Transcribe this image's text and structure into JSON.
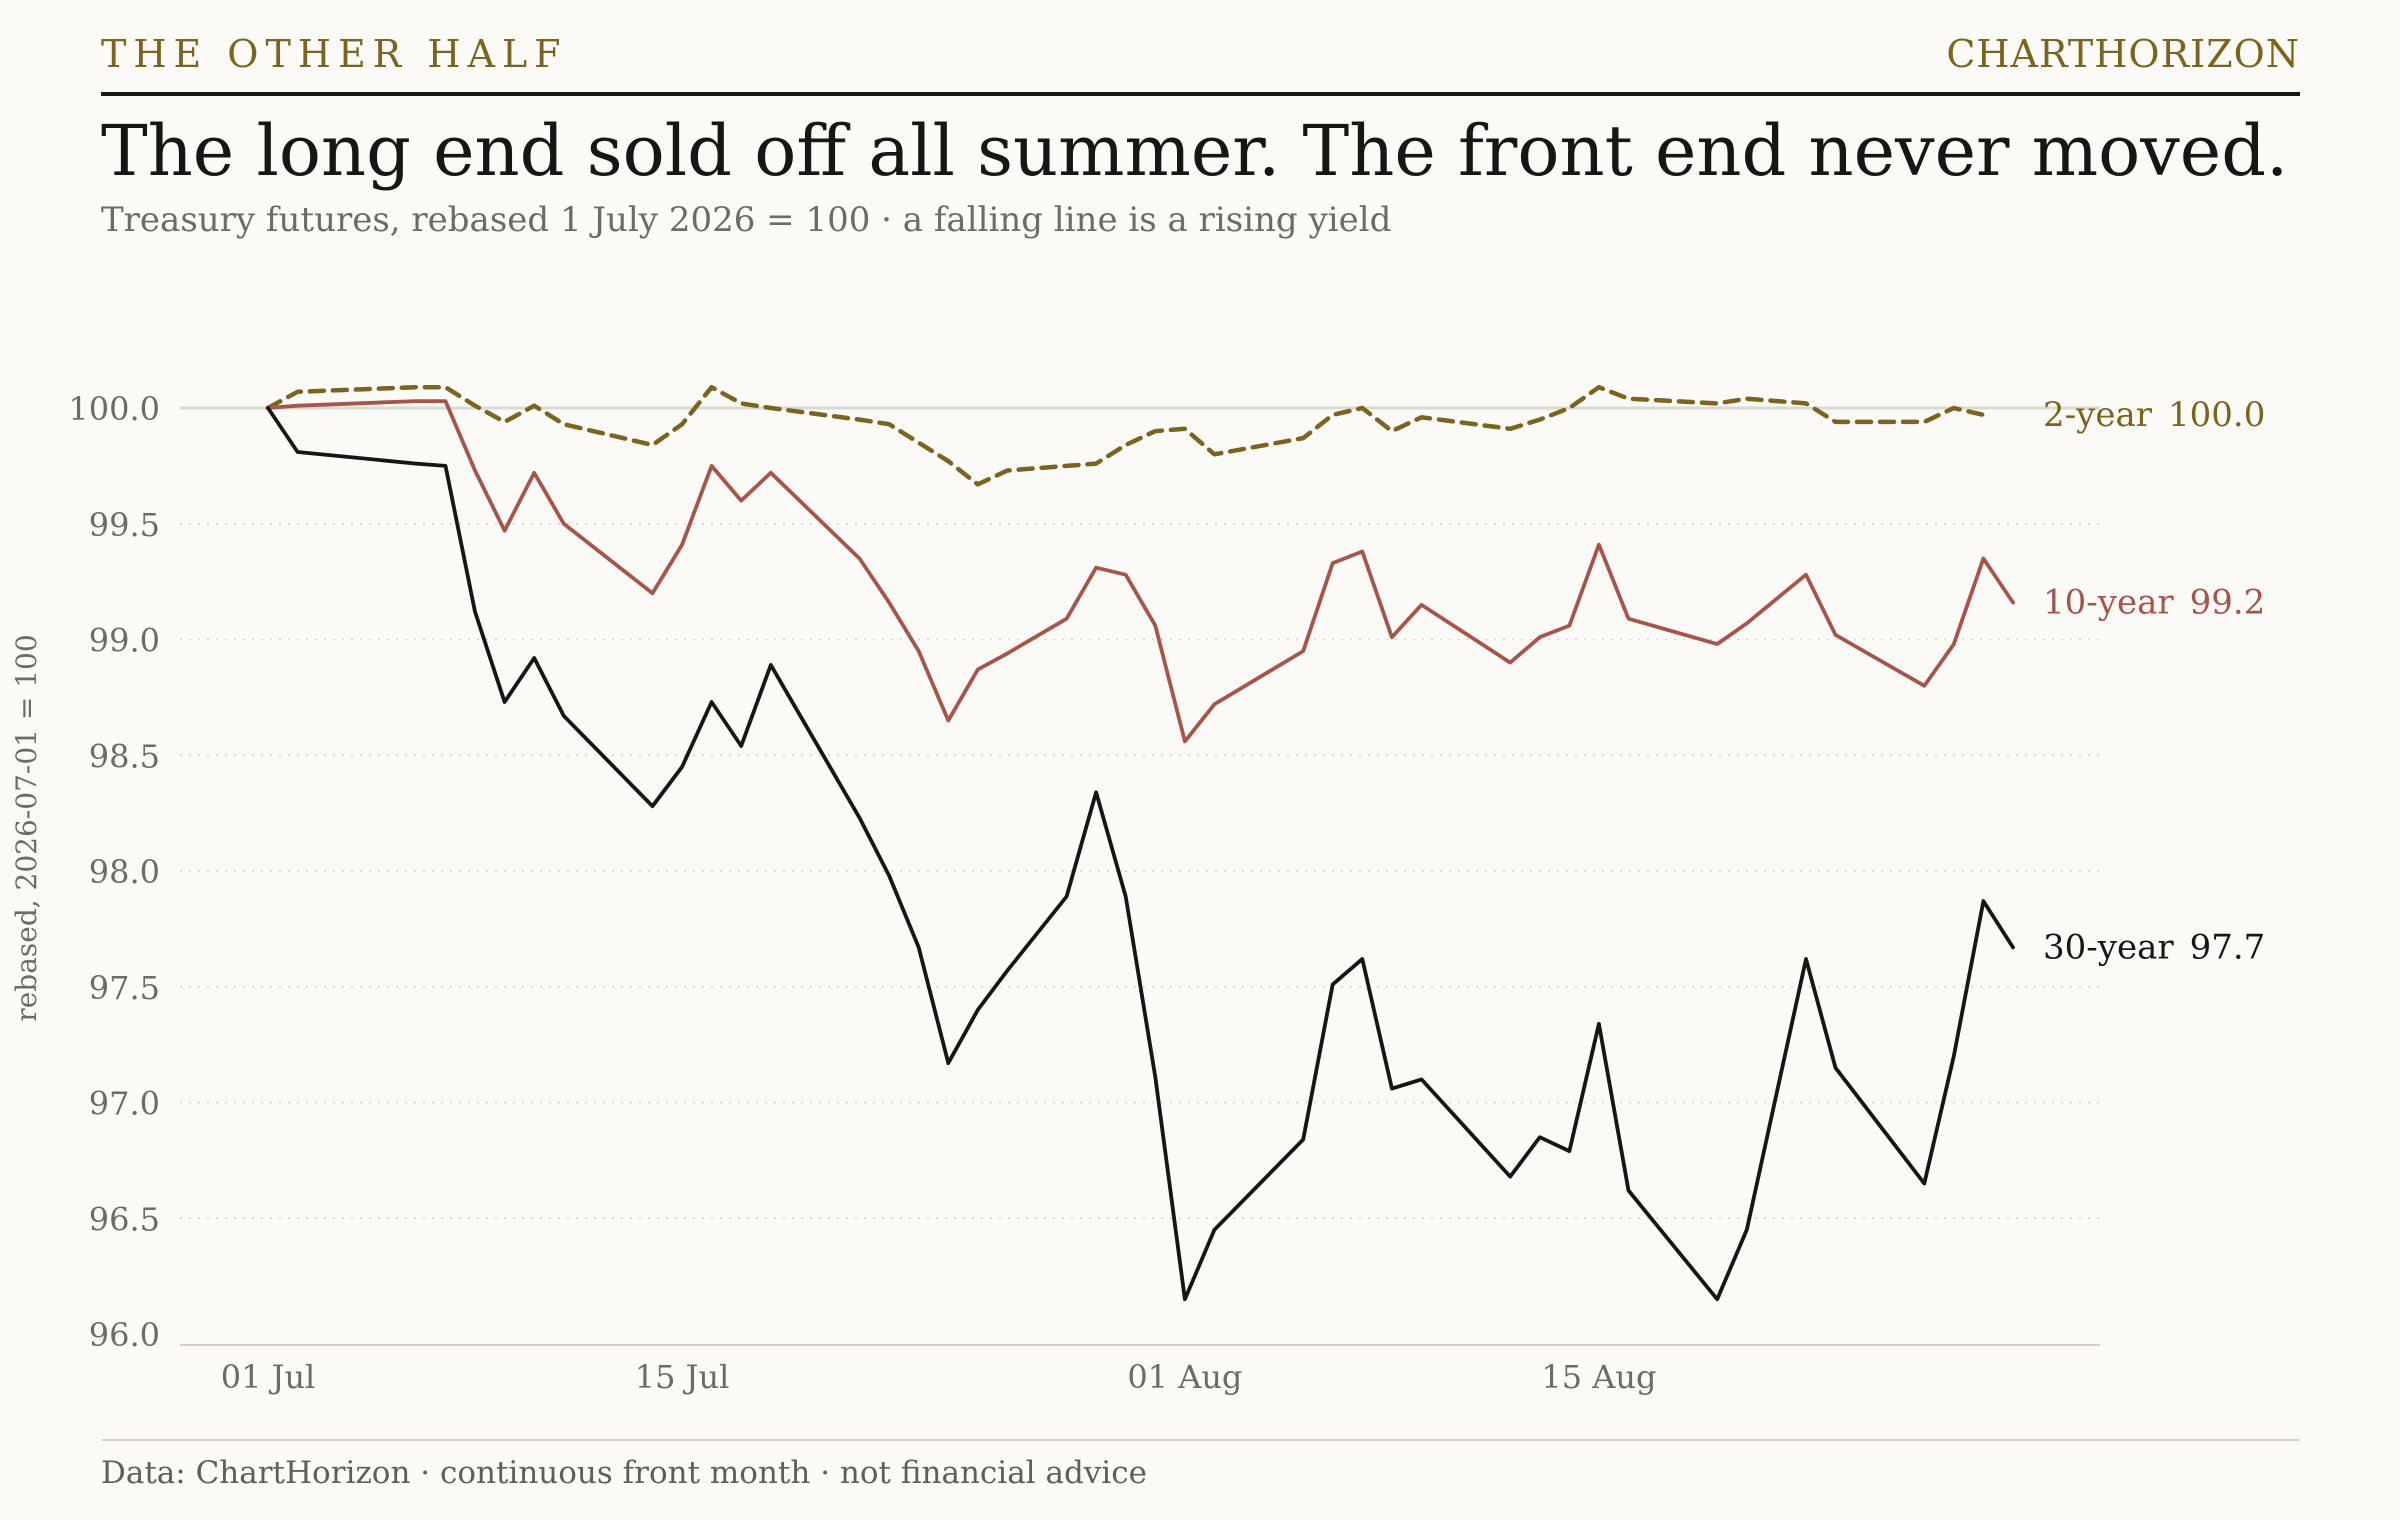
{
  "header": {
    "kicker": "THE OTHER HALF",
    "brand": "CHARTHORIZON"
  },
  "title": "The long end sold off all summer. The front end never moved.",
  "subtitle": "Treasury futures, rebased 1 July 2026 = 100 · a falling line is a rising yield",
  "footer": {
    "source": "Data: ChartHorizon · continuous front month · not financial advice"
  },
  "colors": {
    "background": "#fbfaf7",
    "two_year": "#7a6420",
    "ten_year": "#a5554a",
    "thirty_year": "#161616",
    "grid": "#d4d2cb",
    "baseline": "#d8dcd0",
    "axis_text": "#6b6b68"
  },
  "chart_data": {
    "type": "line",
    "title": "The long end sold off all summer. The front end never moved.",
    "ylabel": "rebased, 2026-07-01 = 100",
    "xlabel": "",
    "ylim": [
      96.0,
      100.0
    ],
    "y_ticks": [
      "100.0",
      "99.5",
      "99.0",
      "98.5",
      "98.0",
      "97.5",
      "97.0",
      "96.5",
      "96.0"
    ],
    "x_ticks": [
      {
        "date": "2026-07-01",
        "label": "01 Jul"
      },
      {
        "date": "2026-07-15",
        "label": "15 Jul"
      },
      {
        "date": "2026-08-01",
        "label": "01 Aug"
      },
      {
        "date": "2026-08-15",
        "label": "15 Aug"
      }
    ],
    "xlim": [
      "2026-06-30",
      "2026-08-31"
    ],
    "grid": "horizontal dotted",
    "reference_line": 100.0,
    "legend": "direct labels at line ends",
    "series": [
      {
        "name": "2-year",
        "end_label": "100.0",
        "style": "dashed",
        "color": "#7a6420",
        "points": [
          [
            "2026-07-01",
            100.0
          ],
          [
            "2026-07-02",
            100.07
          ],
          [
            "2026-07-06",
            100.09
          ],
          [
            "2026-07-07",
            100.09
          ],
          [
            "2026-07-08",
            100.01
          ],
          [
            "2026-07-09",
            99.94
          ],
          [
            "2026-07-10",
            100.01
          ],
          [
            "2026-07-11",
            99.93
          ],
          [
            "2026-07-14",
            99.84
          ],
          [
            "2026-07-15",
            99.93
          ],
          [
            "2026-07-16",
            100.09
          ],
          [
            "2026-07-17",
            100.02
          ],
          [
            "2026-07-18",
            100.0
          ],
          [
            "2026-07-21",
            99.95
          ],
          [
            "2026-07-22",
            99.93
          ],
          [
            "2026-07-23",
            99.85
          ],
          [
            "2026-07-24",
            99.77
          ],
          [
            "2026-07-25",
            99.67
          ],
          [
            "2026-07-26",
            99.73
          ],
          [
            "2026-07-28",
            99.75
          ],
          [
            "2026-07-29",
            99.76
          ],
          [
            "2026-07-30",
            99.84
          ],
          [
            "2026-07-31",
            99.9
          ],
          [
            "2026-08-01",
            99.91
          ],
          [
            "2026-08-02",
            99.8
          ],
          [
            "2026-08-05",
            99.87
          ],
          [
            "2026-08-06",
            99.97
          ],
          [
            "2026-08-07",
            100.0
          ],
          [
            "2026-08-08",
            99.9
          ],
          [
            "2026-08-09",
            99.96
          ],
          [
            "2026-08-12",
            99.91
          ],
          [
            "2026-08-13",
            99.95
          ],
          [
            "2026-08-14",
            100.0
          ],
          [
            "2026-08-15",
            100.09
          ],
          [
            "2026-08-16",
            100.04
          ],
          [
            "2026-08-19",
            100.02
          ],
          [
            "2026-08-20",
            100.04
          ],
          [
            "2026-08-22",
            100.02
          ],
          [
            "2026-08-23",
            99.94
          ],
          [
            "2026-08-26",
            99.94
          ],
          [
            "2026-08-27",
            100.0
          ],
          [
            "2026-08-28",
            99.97
          ]
        ]
      },
      {
        "name": "10-year",
        "end_label": "99.2",
        "style": "solid",
        "color": "#a5554a",
        "points": [
          [
            "2026-07-01",
            100.0
          ],
          [
            "2026-07-02",
            100.01
          ],
          [
            "2026-07-06",
            100.03
          ],
          [
            "2026-07-07",
            100.03
          ],
          [
            "2026-07-08",
            99.73
          ],
          [
            "2026-07-09",
            99.47
          ],
          [
            "2026-07-10",
            99.72
          ],
          [
            "2026-07-11",
            99.5
          ],
          [
            "2026-07-14",
            99.2
          ],
          [
            "2026-07-15",
            99.41
          ],
          [
            "2026-07-16",
            99.75
          ],
          [
            "2026-07-17",
            99.6
          ],
          [
            "2026-07-18",
            99.72
          ],
          [
            "2026-07-21",
            99.35
          ],
          [
            "2026-07-22",
            99.16
          ],
          [
            "2026-07-23",
            98.95
          ],
          [
            "2026-07-24",
            98.65
          ],
          [
            "2026-07-25",
            98.87
          ],
          [
            "2026-07-26",
            98.94
          ],
          [
            "2026-07-28",
            99.09
          ],
          [
            "2026-07-29",
            99.31
          ],
          [
            "2026-07-30",
            99.28
          ],
          [
            "2026-07-31",
            99.06
          ],
          [
            "2026-08-01",
            98.56
          ],
          [
            "2026-08-02",
            98.72
          ],
          [
            "2026-08-05",
            98.95
          ],
          [
            "2026-08-06",
            99.33
          ],
          [
            "2026-08-07",
            99.38
          ],
          [
            "2026-08-08",
            99.01
          ],
          [
            "2026-08-09",
            99.15
          ],
          [
            "2026-08-12",
            98.9
          ],
          [
            "2026-08-13",
            99.01
          ],
          [
            "2026-08-14",
            99.06
          ],
          [
            "2026-08-15",
            99.41
          ],
          [
            "2026-08-16",
            99.09
          ],
          [
            "2026-08-19",
            98.98
          ],
          [
            "2026-08-20",
            99.07
          ],
          [
            "2026-08-22",
            99.28
          ],
          [
            "2026-08-23",
            99.02
          ],
          [
            "2026-08-26",
            98.8
          ],
          [
            "2026-08-27",
            98.98
          ],
          [
            "2026-08-28",
            99.35
          ],
          [
            "2026-08-29",
            99.16
          ]
        ]
      },
      {
        "name": "30-year",
        "end_label": "97.7",
        "style": "solid",
        "color": "#161616",
        "points": [
          [
            "2026-07-01",
            100.0
          ],
          [
            "2026-07-02",
            99.81
          ],
          [
            "2026-07-06",
            99.76
          ],
          [
            "2026-07-07",
            99.75
          ],
          [
            "2026-07-08",
            99.12
          ],
          [
            "2026-07-09",
            98.73
          ],
          [
            "2026-07-10",
            98.92
          ],
          [
            "2026-07-11",
            98.67
          ],
          [
            "2026-07-14",
            98.28
          ],
          [
            "2026-07-15",
            98.45
          ],
          [
            "2026-07-16",
            98.73
          ],
          [
            "2026-07-17",
            98.54
          ],
          [
            "2026-07-18",
            98.89
          ],
          [
            "2026-07-21",
            98.23
          ],
          [
            "2026-07-22",
            97.98
          ],
          [
            "2026-07-23",
            97.67
          ],
          [
            "2026-07-24",
            97.17
          ],
          [
            "2026-07-25",
            97.4
          ],
          [
            "2026-07-26",
            97.57
          ],
          [
            "2026-07-28",
            97.89
          ],
          [
            "2026-07-29",
            98.34
          ],
          [
            "2026-07-30",
            97.89
          ],
          [
            "2026-07-31",
            97.11
          ],
          [
            "2026-08-01",
            96.15
          ],
          [
            "2026-08-02",
            96.45
          ],
          [
            "2026-08-05",
            96.84
          ],
          [
            "2026-08-06",
            97.51
          ],
          [
            "2026-08-07",
            97.62
          ],
          [
            "2026-08-08",
            97.06
          ],
          [
            "2026-08-09",
            97.1
          ],
          [
            "2026-08-12",
            96.68
          ],
          [
            "2026-08-13",
            96.85
          ],
          [
            "2026-08-14",
            96.79
          ],
          [
            "2026-08-15",
            97.34
          ],
          [
            "2026-08-16",
            96.62
          ],
          [
            "2026-08-19",
            96.15
          ],
          [
            "2026-08-20",
            96.45
          ],
          [
            "2026-08-22",
            97.62
          ],
          [
            "2026-08-23",
            97.15
          ],
          [
            "2026-08-26",
            96.65
          ],
          [
            "2026-08-27",
            97.2
          ],
          [
            "2026-08-28",
            97.87
          ],
          [
            "2026-08-29",
            97.67
          ]
        ]
      }
    ]
  }
}
